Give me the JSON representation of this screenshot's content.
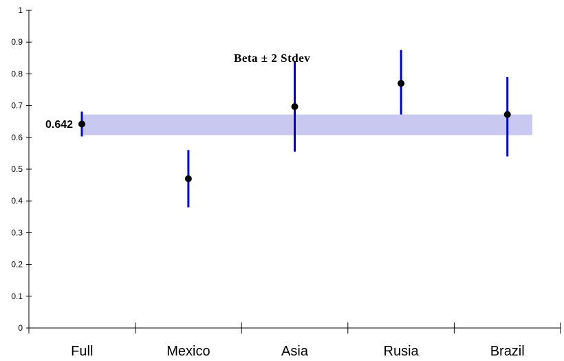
{
  "chart_data": {
    "type": "scatter",
    "title": "",
    "xlabel": "",
    "ylabel": "",
    "ylim": [
      0,
      1
    ],
    "y_ticks": [
      "0",
      "0.1",
      "0.2",
      "0.3",
      "0.4",
      "0.5",
      "0.6",
      "0.7",
      "0.8",
      "0.9",
      "1"
    ],
    "categories": [
      "Full",
      "Mexico",
      "Asia",
      "Rusia",
      "Brazil"
    ],
    "points": [
      {
        "category": "Full",
        "value": 0.642,
        "low": 0.603,
        "high": 0.681
      },
      {
        "category": "Mexico",
        "value": 0.47,
        "low": 0.38,
        "high": 0.56
      },
      {
        "category": "Asia",
        "value": 0.697,
        "low": 0.555,
        "high": 0.84
      },
      {
        "category": "Rusia",
        "value": 0.77,
        "low": 0.672,
        "high": 0.875
      },
      {
        "category": "Brazil",
        "value": 0.672,
        "low": 0.54,
        "high": 0.79
      }
    ],
    "band": {
      "low": 0.607,
      "high": 0.672,
      "color": "#c8c8f0"
    },
    "annotation": "Beta ± 2 Stdev",
    "value_label": "0.642",
    "grid": false,
    "colors": {
      "errorbar": "#0000cc",
      "point": "#000000",
      "axis": "#000000"
    }
  }
}
